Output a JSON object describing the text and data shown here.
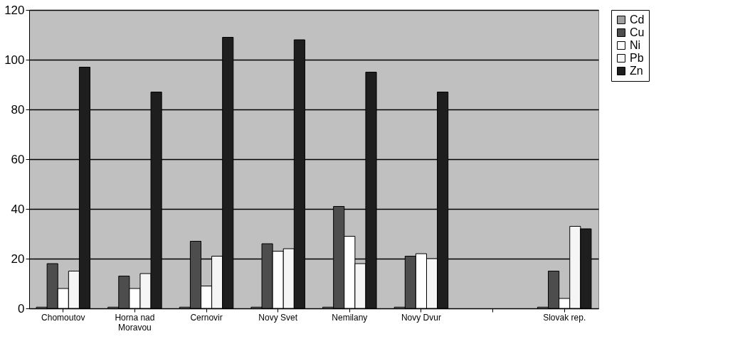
{
  "chart_data": {
    "type": "bar",
    "categories": [
      "Chomoutov",
      "Horna nad Moravou",
      "Cernovir",
      "Novy Svet",
      "Nemilany",
      "Novy Dvur",
      null,
      "Slovak rep."
    ],
    "series": [
      {
        "name": "Cd",
        "color": "#a0a0a0",
        "values": [
          0.5,
          0.5,
          0.5,
          0.5,
          0.5,
          0.5,
          null,
          0.5
        ]
      },
      {
        "name": "Cu",
        "color": "#4d4d4d",
        "values": [
          18,
          13,
          27,
          26,
          41,
          21,
          null,
          15
        ]
      },
      {
        "name": "Ni",
        "color": "#ffffff",
        "values": [
          8,
          8,
          9,
          23,
          29,
          22,
          null,
          4
        ]
      },
      {
        "name": "Pb",
        "color": "#f5f5f5",
        "values": [
          15,
          14,
          21,
          24,
          18,
          20,
          null,
          33
        ]
      },
      {
        "name": "Zn",
        "color": "#1e1e1e",
        "values": [
          97,
          87,
          109,
          108,
          95,
          87,
          null,
          32
        ]
      }
    ],
    "ylim": [
      0,
      120
    ],
    "yticks": [
      0,
      20,
      40,
      60,
      80,
      100,
      120
    ],
    "grid": "y",
    "legend": "right"
  }
}
